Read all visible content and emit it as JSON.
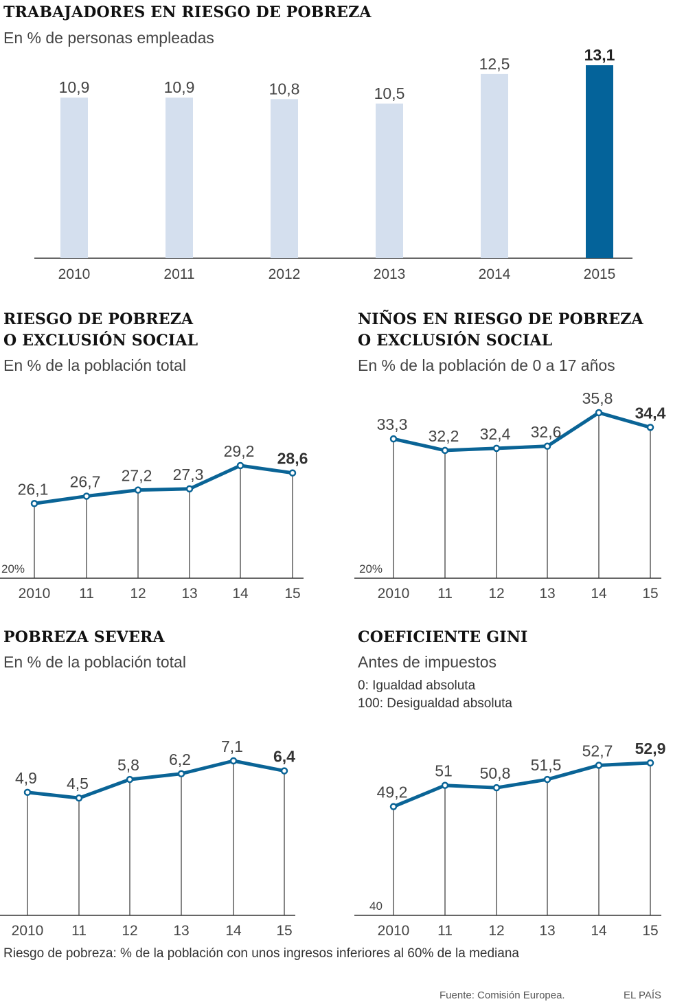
{
  "colors": {
    "accent": "#0a6496",
    "bar_light": "#d4dfee",
    "bar_highlight": "#04639a",
    "text": "#333333"
  },
  "footer": {
    "note": "Riesgo de pobreza: % de la población con unos ingresos inferiores al 60% de la mediana",
    "source": "Fuente: Comisión Europea.",
    "brand": "EL PAÍS"
  },
  "chart_data": [
    {
      "id": "workers",
      "type": "bar",
      "title": "TRABAJADORES EN RIESGO DE POBREZA",
      "subtitle": "En % de personas empleadas",
      "categories": [
        "2010",
        "2011",
        "2012",
        "2013",
        "2014",
        "2015"
      ],
      "values": [
        10.9,
        10.9,
        10.8,
        10.5,
        12.5,
        13.1
      ],
      "labels": [
        "10,9",
        "10,9",
        "10,8",
        "10,5",
        "12,5",
        "13,1"
      ],
      "highlight_index": 5,
      "ylim": [
        0,
        13.1
      ]
    },
    {
      "id": "riesgo",
      "type": "line",
      "title_lines": [
        "RIESGO DE POBREZA",
        "O EXCLUSIÓN SOCIAL"
      ],
      "subtitle": "En % de la población total",
      "categories": [
        "2010",
        "11",
        "12",
        "13",
        "14",
        "15"
      ],
      "values": [
        26.1,
        26.7,
        27.2,
        27.3,
        29.2,
        28.6
      ],
      "labels": [
        "26,1",
        "26,7",
        "27,2",
        "27,3",
        "29,2",
        "28,6"
      ],
      "baseline_label": "20%",
      "ylim": [
        20,
        29.2
      ]
    },
    {
      "id": "ninos",
      "type": "line",
      "title_lines": [
        "NIÑOS EN RIESGO DE POBREZA",
        "O EXCLUSIÓN SOCIAL"
      ],
      "subtitle": "En % de la población de 0 a 17 años",
      "categories": [
        "2010",
        "11",
        "12",
        "13",
        "14",
        "15"
      ],
      "values": [
        33.3,
        32.2,
        32.4,
        32.6,
        35.8,
        34.4
      ],
      "labels": [
        "33,3",
        "32,2",
        "32,4",
        "32,6",
        "35,8",
        "34,4"
      ],
      "baseline_label": "20%",
      "ylim": [
        20,
        35.8
      ]
    },
    {
      "id": "severa",
      "type": "line",
      "title_lines": [
        "POBREZA SEVERA"
      ],
      "subtitle": "En % de la población total",
      "categories": [
        "2010",
        "11",
        "12",
        "13",
        "14",
        "15"
      ],
      "values": [
        4.9,
        4.5,
        5.8,
        6.2,
        7.1,
        6.4
      ],
      "labels": [
        "4,9",
        "4,5",
        "5,8",
        "6,2",
        "7,1",
        "6,4"
      ],
      "baseline_label": "",
      "ylim": [
        -3.7,
        7.1
      ]
    },
    {
      "id": "gini",
      "type": "line",
      "title_lines": [
        "COEFICIENTE GINI"
      ],
      "subtitle": "Antes de impuestos",
      "notes": [
        "0: Igualdad absoluta",
        "100: Desigualdad absoluta"
      ],
      "categories": [
        "2010",
        "11",
        "12",
        "13",
        "14",
        "15"
      ],
      "values": [
        49.2,
        51,
        50.8,
        51.5,
        52.7,
        52.9
      ],
      "labels": [
        "49,2",
        "51",
        "50,8",
        "51,5",
        "52,7",
        "52,9"
      ],
      "baseline_label": "40",
      "ylim": [
        40,
        52.9
      ]
    }
  ]
}
